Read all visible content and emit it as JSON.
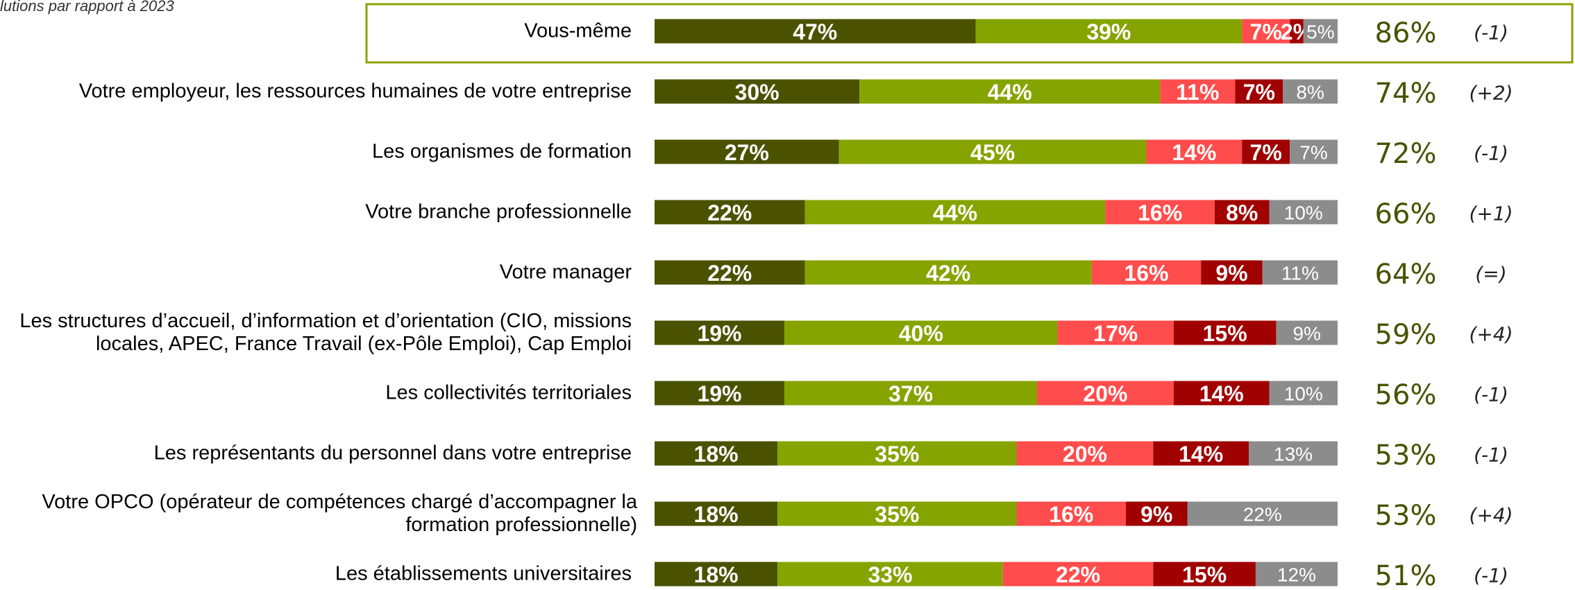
{
  "chart_data": {
    "type": "stacked_bar_horizontal",
    "subtitle": "lutions par rapport à 2023",
    "categories": [
      "Vous-même",
      "Votre employeur, les ressources humaines de votre entreprise",
      "Les organismes de formation",
      "Votre branche professionnelle",
      "Votre manager",
      "Les structures d’accueil, d’information et d’orientation (CIO, missions locales, APEC, France Travail (ex-Pôle Emploi), Cap Emploi",
      "Les collectivités territoriales",
      "Les représentants du personnel dans votre entreprise",
      "Votre OPCO (opérateur de compétences chargé d’accompagner la formation professionnelle)",
      "Les établissements universitaires"
    ],
    "xlim": [
      0,
      100
    ],
    "series": [
      {
        "color": "#4a5200",
        "values": [
          47,
          30,
          27,
          22,
          22,
          19,
          19,
          18,
          18,
          18
        ],
        "value_labels": [
          "47%",
          "30%",
          "27%",
          "22%",
          "22%",
          "19%",
          "19%",
          "18%",
          "18%",
          "18%"
        ]
      },
      {
        "color": "#86a400",
        "values": [
          39,
          44,
          45,
          44,
          42,
          40,
          37,
          35,
          35,
          33
        ],
        "value_labels": [
          "39%",
          "44%",
          "45%",
          "44%",
          "42%",
          "40%",
          "37%",
          "35%",
          "35%",
          "33%"
        ]
      },
      {
        "color": "#ff4c4c",
        "values": [
          7,
          11,
          14,
          16,
          16,
          17,
          20,
          20,
          16,
          22
        ],
        "value_labels": [
          "7%",
          "11%",
          "14%",
          "16%",
          "16%",
          "17%",
          "20%",
          "20%",
          "16%",
          "22%"
        ]
      },
      {
        "color": "#a00000",
        "values": [
          2,
          7,
          7,
          8,
          9,
          15,
          14,
          14,
          9,
          15
        ],
        "value_labels": [
          "2%",
          "7%",
          "7%",
          "8%",
          "9%",
          "15%",
          "14%",
          "14%",
          "9%",
          "15%"
        ]
      },
      {
        "color": "#8c8c8c",
        "values": [
          5,
          8,
          7,
          10,
          11,
          9,
          10,
          13,
          22,
          12
        ],
        "value_labels": [
          "5%",
          "8%",
          "7%",
          "10%",
          "11%",
          "9%",
          "10%",
          "13%",
          "22%",
          "12%"
        ]
      }
    ],
    "totals": {
      "color": "#4a5200",
      "values": [
        86,
        74,
        72,
        66,
        64,
        59,
        56,
        53,
        53,
        51
      ],
      "value_labels": [
        "86%",
        "74%",
        "72%",
        "66%",
        "64%",
        "59%",
        "56%",
        "53%",
        "53%",
        "51%"
      ]
    },
    "changes": [
      "(-1)",
      "(+2)",
      "(-1)",
      "(+1)",
      "(=)",
      "(+4)",
      "(-1)",
      "(-1)",
      "(+4)",
      "(-1)"
    ]
  }
}
